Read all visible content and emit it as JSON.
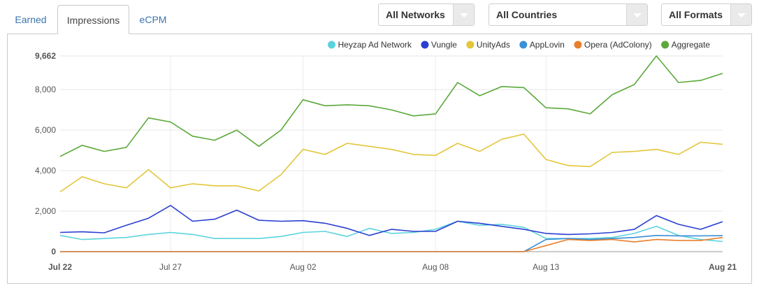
{
  "tabs": [
    {
      "label": "Earned"
    },
    {
      "label": "Impressions"
    },
    {
      "label": "eCPM"
    }
  ],
  "filters": {
    "network": "All Networks",
    "country": "All Countries",
    "format": "All Formats"
  },
  "chart_data": {
    "type": "line",
    "x": [
      "Jul 22",
      "Jul 23",
      "Jul 24",
      "Jul 25",
      "Jul 26",
      "Jul 27",
      "Jul 28",
      "Jul 29",
      "Jul 30",
      "Jul 31",
      "Aug 01",
      "Aug 02",
      "Aug 03",
      "Aug 04",
      "Aug 05",
      "Aug 06",
      "Aug 07",
      "Aug 08",
      "Aug 09",
      "Aug 10",
      "Aug 11",
      "Aug 12",
      "Aug 13",
      "Aug 14",
      "Aug 15",
      "Aug 16",
      "Aug 17",
      "Aug 18",
      "Aug 19",
      "Aug 20",
      "Aug 21"
    ],
    "x_tick_labels": [
      {
        "index": 0,
        "label": "Jul 22",
        "bold": true
      },
      {
        "index": 5,
        "label": "Jul 27",
        "bold": false
      },
      {
        "index": 11,
        "label": "Aug 02",
        "bold": false
      },
      {
        "index": 17,
        "label": "Aug 08",
        "bold": false
      },
      {
        "index": 22,
        "label": "Aug 13",
        "bold": false
      },
      {
        "index": 30,
        "label": "Aug 21",
        "bold": true
      }
    ],
    "y_ticks": [
      {
        "value": 0,
        "label": "0",
        "bold": true
      },
      {
        "value": 2000,
        "label": "2,000",
        "bold": false
      },
      {
        "value": 4000,
        "label": "4,000",
        "bold": false
      },
      {
        "value": 6000,
        "label": "6,000",
        "bold": false
      },
      {
        "value": 8000,
        "label": "8,000",
        "bold": false
      },
      {
        "value": 9662,
        "label": "9,662",
        "bold": true
      }
    ],
    "ylim": [
      0,
      9662
    ],
    "grid": true,
    "legend_position": "top-right",
    "series": [
      {
        "name": "Heyzap Ad Network",
        "color": "#5bd3dd",
        "values": [
          800,
          600,
          650,
          700,
          850,
          950,
          850,
          650,
          650,
          650,
          750,
          950,
          1000,
          750,
          1150,
          900,
          950,
          1100,
          1500,
          1300,
          1350,
          1200,
          650,
          650,
          650,
          700,
          900,
          1250,
          800,
          600,
          500
        ]
      },
      {
        "name": "Vungle",
        "color": "#2a3fd1",
        "values": [
          950,
          980,
          930,
          1300,
          1650,
          2280,
          1500,
          1600,
          2050,
          1550,
          1500,
          1530,
          1400,
          1150,
          800,
          1100,
          1000,
          1000,
          1500,
          1400,
          1250,
          1100,
          900,
          850,
          880,
          950,
          1100,
          1780,
          1350,
          1100,
          1480
        ]
      },
      {
        "name": "UnityAds",
        "color": "#e3c63a",
        "values": [
          2950,
          3700,
          3350,
          3150,
          4050,
          3150,
          3350,
          3250,
          3250,
          3000,
          3800,
          5050,
          4800,
          5350,
          5200,
          5050,
          4800,
          4750,
          5350,
          4950,
          5550,
          5800,
          4550,
          4250,
          4200,
          4900,
          4950,
          5050,
          4800,
          5400,
          5300
        ]
      },
      {
        "name": "AppLovin",
        "color": "#3b8fd6",
        "values": [
          0,
          0,
          0,
          0,
          0,
          0,
          0,
          0,
          0,
          0,
          0,
          0,
          0,
          0,
          0,
          0,
          0,
          0,
          0,
          0,
          0,
          0,
          600,
          650,
          600,
          650,
          700,
          800,
          780,
          780,
          790
        ]
      },
      {
        "name": "Opera (AdColony)",
        "color": "#ea7f2b",
        "values": [
          0,
          0,
          0,
          0,
          0,
          0,
          0,
          0,
          0,
          0,
          0,
          0,
          0,
          0,
          0,
          0,
          0,
          0,
          0,
          0,
          0,
          0,
          300,
          600,
          550,
          600,
          480,
          600,
          550,
          550,
          700
        ]
      },
      {
        "name": "Aggregate",
        "color": "#5aa93a",
        "values": [
          4700,
          5250,
          4950,
          5150,
          6600,
          6400,
          5700,
          5500,
          6000,
          5200,
          6000,
          7500,
          7200,
          7250,
          7200,
          7000,
          6700,
          6800,
          8350,
          7700,
          8150,
          8100,
          7100,
          7050,
          6800,
          7750,
          8250,
          9662,
          8350,
          8450,
          8800
        ]
      }
    ]
  }
}
